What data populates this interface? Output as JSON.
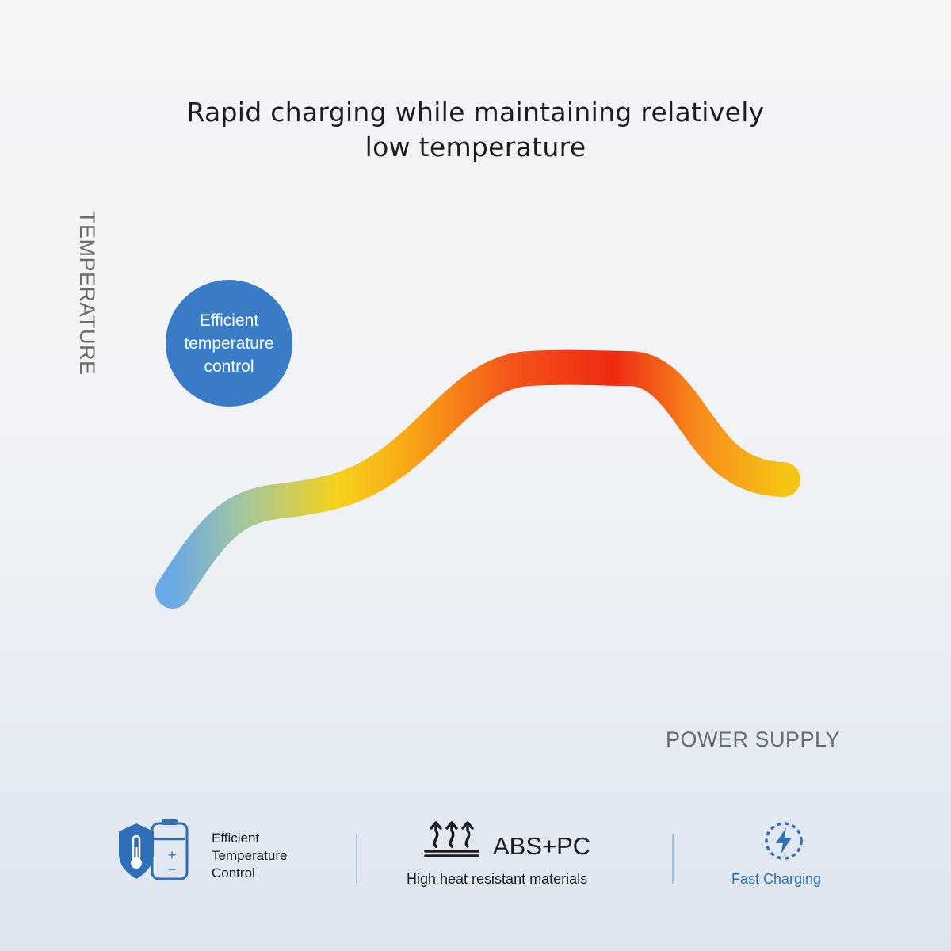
{
  "headline": {
    "line1": "Rapid charging while maintaining relatively",
    "line2": "low temperature"
  },
  "graph": {
    "y_axis_label": "TEMPERATURE",
    "x_axis_label": "POWER SUPPLY",
    "badge": {
      "line1": "Efficient",
      "line2": "temperature",
      "line3": "control",
      "color": "#3a7cc6"
    },
    "colors": {
      "grid_top": "#e8321c",
      "grid_upper": "#f47a14",
      "grid_mid": "#a07a70",
      "grid_bottom": "#3c86d6",
      "curve_start": "#6aa8e6",
      "curve_yellow": "#f4d21a",
      "curve_orange": "#f78c1c",
      "curve_peak": "#ee2a12"
    }
  },
  "features": [
    {
      "icon": "thermometer-shield-battery-icon",
      "label_lines": [
        "Efficient",
        "Temperature",
        "Control"
      ]
    },
    {
      "icon": "heat-arrows-icon",
      "title": "ABS+PC",
      "subtitle": "High heat resistant materials"
    },
    {
      "icon": "lightning-circle-icon",
      "label": "Fast Charging",
      "color": "#2c6fb6"
    }
  ]
}
